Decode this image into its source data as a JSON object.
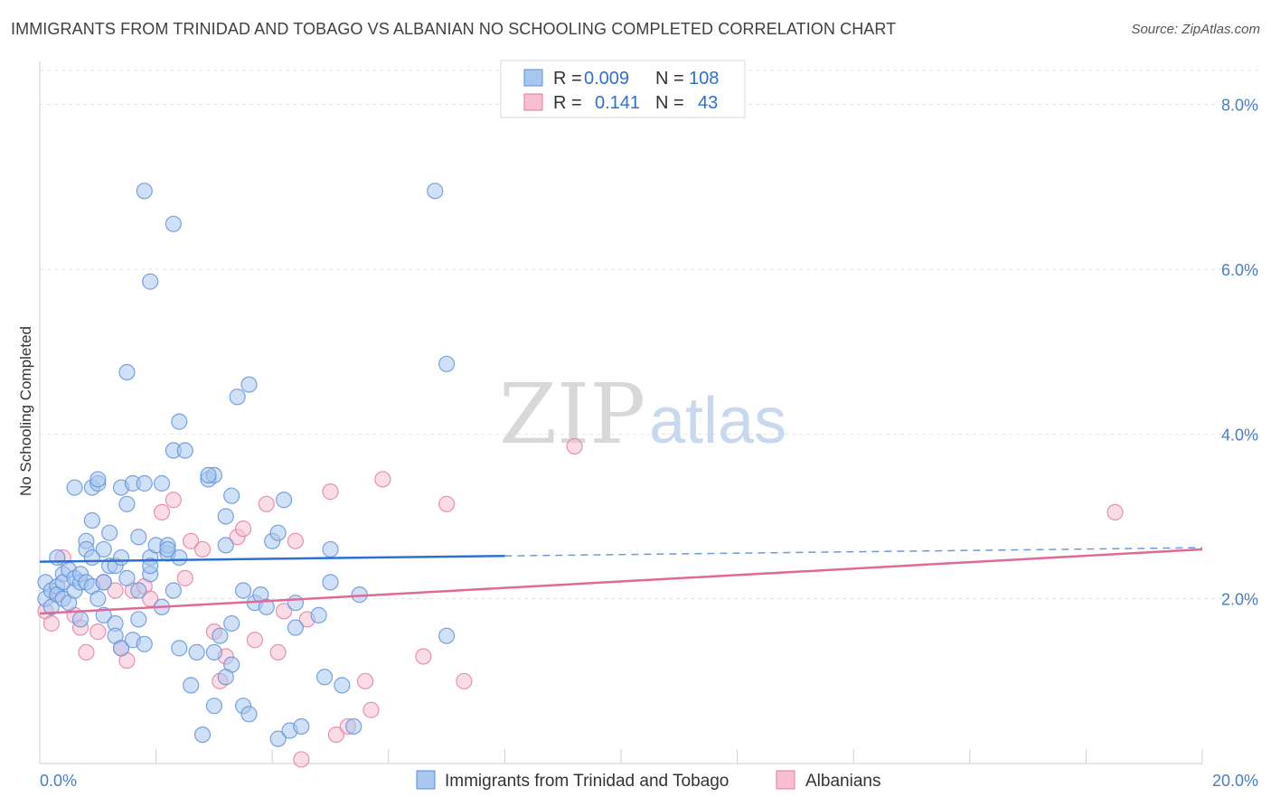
{
  "title": "IMMIGRANTS FROM TRINIDAD AND TOBAGO VS ALBANIAN NO SCHOOLING COMPLETED CORRELATION CHART",
  "source": "Source: ZipAtlas.com",
  "watermark": {
    "zip": "ZIP",
    "atlas": "atlas"
  },
  "legend": {
    "r_label": "R =",
    "n_label": "N =",
    "rows": [
      {
        "r": "0.009",
        "n": "108"
      },
      {
        "r": "0.141",
        "n": "43"
      }
    ]
  },
  "colors": {
    "blue_fill": "#a9c6ef",
    "blue_stroke": "#5b8fd8",
    "blue_line": "#2f6fd0",
    "pink_fill": "#f6bfd2",
    "pink_stroke": "#e07aa0",
    "pink_line": "#e06a96"
  },
  "chart_data": {
    "type": "scatter",
    "title": "IMMIGRANTS FROM TRINIDAD AND TOBAGO VS ALBANIAN NO SCHOOLING COMPLETED CORRELATION CHART",
    "xlabel": "",
    "ylabel": "No Schooling Completed",
    "xlim": [
      0,
      20
    ],
    "ylim": [
      0,
      8.5
    ],
    "x_tick_labels": [
      "0.0%",
      "20.0%"
    ],
    "y_ticks": [
      2,
      4,
      6,
      8
    ],
    "y_tick_labels": [
      "2.0%",
      "4.0%",
      "6.0%",
      "8.0%"
    ],
    "grid": true,
    "legend_placement": "bottom",
    "series": [
      {
        "name": "Immigrants from Trinidad and Tobago",
        "color": "#5b8fd8",
        "trend": {
          "x": [
            0,
            8
          ],
          "y": [
            2.45,
            2.52
          ],
          "dashed_to": [
            20,
            2.62
          ]
        },
        "points": [
          [
            0.1,
            2.2
          ],
          [
            0.1,
            2.0
          ],
          [
            0.2,
            2.1
          ],
          [
            0.2,
            1.9
          ],
          [
            0.3,
            2.15
          ],
          [
            0.3,
            2.05
          ],
          [
            0.3,
            2.5
          ],
          [
            0.4,
            2.3
          ],
          [
            0.4,
            2.2
          ],
          [
            0.4,
            2.0
          ],
          [
            0.5,
            2.35
          ],
          [
            0.5,
            1.95
          ],
          [
            0.6,
            2.1
          ],
          [
            0.6,
            2.25
          ],
          [
            0.6,
            3.35
          ],
          [
            0.7,
            2.2
          ],
          [
            0.7,
            1.75
          ],
          [
            0.7,
            2.3
          ],
          [
            0.8,
            2.7
          ],
          [
            0.8,
            2.6
          ],
          [
            0.8,
            2.2
          ],
          [
            0.9,
            2.15
          ],
          [
            0.9,
            2.5
          ],
          [
            0.9,
            3.35
          ],
          [
            0.9,
            2.95
          ],
          [
            1.0,
            3.4
          ],
          [
            1.0,
            3.45
          ],
          [
            1.0,
            2.0
          ],
          [
            1.1,
            1.8
          ],
          [
            1.1,
            2.6
          ],
          [
            1.1,
            2.2
          ],
          [
            1.2,
            2.4
          ],
          [
            1.2,
            2.8
          ],
          [
            1.3,
            1.7
          ],
          [
            1.3,
            1.55
          ],
          [
            1.3,
            2.4
          ],
          [
            1.4,
            3.35
          ],
          [
            1.4,
            2.5
          ],
          [
            1.4,
            1.4
          ],
          [
            1.5,
            3.15
          ],
          [
            1.5,
            2.25
          ],
          [
            1.5,
            4.75
          ],
          [
            1.6,
            3.4
          ],
          [
            1.6,
            1.5
          ],
          [
            1.7,
            1.75
          ],
          [
            1.7,
            2.1
          ],
          [
            1.7,
            2.75
          ],
          [
            1.8,
            3.4
          ],
          [
            1.8,
            1.45
          ],
          [
            1.9,
            2.5
          ],
          [
            1.9,
            2.3
          ],
          [
            1.9,
            2.4
          ],
          [
            1.9,
            5.85
          ],
          [
            2.0,
            2.65
          ],
          [
            2.1,
            3.4
          ],
          [
            2.1,
            1.9
          ],
          [
            2.2,
            2.55
          ],
          [
            2.2,
            2.65
          ],
          [
            2.2,
            2.6
          ],
          [
            2.3,
            3.8
          ],
          [
            2.3,
            2.1
          ],
          [
            2.4,
            2.5
          ],
          [
            2.4,
            1.4
          ],
          [
            2.4,
            4.15
          ],
          [
            2.5,
            3.8
          ],
          [
            2.6,
            0.95
          ],
          [
            2.7,
            1.35
          ],
          [
            2.8,
            0.35
          ],
          [
            2.9,
            3.45
          ],
          [
            3.0,
            0.7
          ],
          [
            3.0,
            3.5
          ],
          [
            3.1,
            1.55
          ],
          [
            3.2,
            2.65
          ],
          [
            3.2,
            3.0
          ],
          [
            3.3,
            1.7
          ],
          [
            3.3,
            1.2
          ],
          [
            3.5,
            2.1
          ],
          [
            3.5,
            0.7
          ],
          [
            3.6,
            0.6
          ],
          [
            3.7,
            1.95
          ],
          [
            3.8,
            2.05
          ],
          [
            3.9,
            1.9
          ],
          [
            4.0,
            2.7
          ],
          [
            4.1,
            0.3
          ],
          [
            4.1,
            2.8
          ],
          [
            4.2,
            3.2
          ],
          [
            4.3,
            0.4
          ],
          [
            4.4,
            1.65
          ],
          [
            4.4,
            1.95
          ],
          [
            4.5,
            0.45
          ],
          [
            4.8,
            1.8
          ],
          [
            4.9,
            1.05
          ],
          [
            5.0,
            2.6
          ],
          [
            5.0,
            2.2
          ],
          [
            5.2,
            0.95
          ],
          [
            5.4,
            0.45
          ],
          [
            5.5,
            2.05
          ],
          [
            6.8,
            6.95
          ],
          [
            7.0,
            1.55
          ],
          [
            7.0,
            4.85
          ],
          [
            3.3,
            3.25
          ],
          [
            3.6,
            4.6
          ],
          [
            3.4,
            4.45
          ],
          [
            2.3,
            6.55
          ],
          [
            1.8,
            6.95
          ],
          [
            2.9,
            3.5
          ],
          [
            3.2,
            1.05
          ],
          [
            3.0,
            1.35
          ]
        ]
      },
      {
        "name": "Albanians",
        "color": "#e07aa0",
        "trend": {
          "x": [
            0,
            20
          ],
          "y": [
            1.82,
            2.6
          ]
        },
        "points": [
          [
            0.1,
            1.85
          ],
          [
            0.2,
            1.7
          ],
          [
            0.3,
            2.05
          ],
          [
            0.4,
            2.5
          ],
          [
            0.6,
            1.8
          ],
          [
            0.7,
            1.65
          ],
          [
            0.8,
            1.35
          ],
          [
            1.0,
            1.6
          ],
          [
            1.1,
            2.2
          ],
          [
            1.3,
            2.1
          ],
          [
            1.4,
            1.4
          ],
          [
            1.5,
            1.25
          ],
          [
            1.6,
            2.1
          ],
          [
            1.8,
            2.15
          ],
          [
            1.9,
            2.0
          ],
          [
            2.1,
            3.05
          ],
          [
            2.3,
            3.2
          ],
          [
            2.5,
            2.25
          ],
          [
            2.6,
            2.7
          ],
          [
            2.8,
            2.6
          ],
          [
            3.0,
            1.6
          ],
          [
            3.1,
            1.0
          ],
          [
            3.2,
            1.3
          ],
          [
            3.4,
            2.75
          ],
          [
            3.5,
            2.85
          ],
          [
            3.7,
            1.5
          ],
          [
            3.9,
            3.15
          ],
          [
            4.1,
            1.35
          ],
          [
            4.2,
            1.85
          ],
          [
            4.4,
            2.7
          ],
          [
            4.5,
            0.05
          ],
          [
            4.6,
            1.75
          ],
          [
            5.0,
            3.3
          ],
          [
            5.1,
            0.35
          ],
          [
            5.3,
            0.45
          ],
          [
            5.6,
            1.0
          ],
          [
            5.7,
            0.65
          ],
          [
            5.9,
            3.45
          ],
          [
            6.6,
            1.3
          ],
          [
            7.0,
            3.15
          ],
          [
            7.3,
            1.0
          ],
          [
            9.2,
            3.85
          ],
          [
            18.5,
            3.05
          ]
        ]
      }
    ]
  }
}
